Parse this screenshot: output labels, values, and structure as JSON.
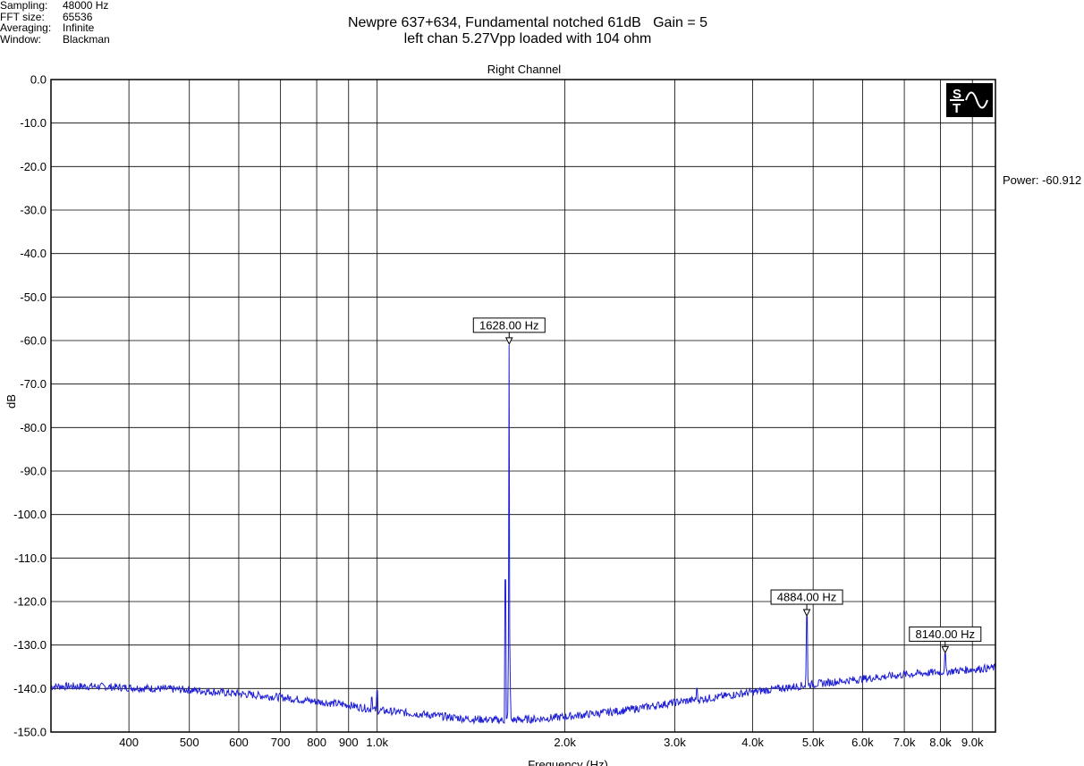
{
  "info": {
    "rows": [
      {
        "label": "Sampling:",
        "value": "48000 Hz"
      },
      {
        "label": "FFT size:",
        "value": "65536"
      },
      {
        "label": "Averaging:",
        "value": "Infinite"
      },
      {
        "label": "Window:",
        "value": "Blackman"
      }
    ]
  },
  "title": {
    "line1": "Newpre 637+634, Fundamental notched 61dB   Gain = 5",
    "line2": "left chan 5.27Vpp loaded with 104 ohm"
  },
  "power_readout": "Power: -60.912",
  "colors": {
    "trace": "#1f1fd6",
    "grid": "#000000",
    "background": "#ffffff"
  },
  "chart_data": {
    "type": "line",
    "title": "Right Channel",
    "xlabel": "Frequency (Hz)",
    "ylabel": "dB",
    "xscale": "log",
    "xlim": [
      300,
      9800
    ],
    "ylim": [
      -150,
      0
    ],
    "grid": true,
    "x_ticks": [
      {
        "value": 400,
        "label": "400"
      },
      {
        "value": 500,
        "label": "500"
      },
      {
        "value": 600,
        "label": "600"
      },
      {
        "value": 700,
        "label": "700"
      },
      {
        "value": 800,
        "label": "800"
      },
      {
        "value": 900,
        "label": "900"
      },
      {
        "value": 1000,
        "label": "1.0k"
      },
      {
        "value": 2000,
        "label": "2.0k"
      },
      {
        "value": 3000,
        "label": "3.0k"
      },
      {
        "value": 4000,
        "label": "4.0k"
      },
      {
        "value": 5000,
        "label": "5.0k"
      },
      {
        "value": 6000,
        "label": "6.0k"
      },
      {
        "value": 7000,
        "label": "7.0k"
      },
      {
        "value": 8000,
        "label": "8.0k"
      },
      {
        "value": 9000,
        "label": "9.0k"
      }
    ],
    "y_ticks": [
      {
        "value": 0,
        "label": "0.0"
      },
      {
        "value": -10,
        "label": "-10.0"
      },
      {
        "value": -20,
        "label": "-20.0"
      },
      {
        "value": -30,
        "label": "-30.0"
      },
      {
        "value": -40,
        "label": "-40.0"
      },
      {
        "value": -50,
        "label": "-50.0"
      },
      {
        "value": -60,
        "label": "-60.0"
      },
      {
        "value": -70,
        "label": "-70.0"
      },
      {
        "value": -80,
        "label": "-80.0"
      },
      {
        "value": -90,
        "label": "-90.0"
      },
      {
        "value": -100,
        "label": "-100.0"
      },
      {
        "value": -110,
        "label": "-110.0"
      },
      {
        "value": -120,
        "label": "-120.0"
      },
      {
        "value": -130,
        "label": "-130.0"
      },
      {
        "value": -140,
        "label": "-140.0"
      },
      {
        "value": -150,
        "label": "-150.0"
      }
    ],
    "noise_floor": [
      {
        "x": 300,
        "y": -139.5
      },
      {
        "x": 350,
        "y": -139.5
      },
      {
        "x": 400,
        "y": -139.8
      },
      {
        "x": 500,
        "y": -140.3
      },
      {
        "x": 600,
        "y": -141.2
      },
      {
        "x": 700,
        "y": -142.0
      },
      {
        "x": 800,
        "y": -143.0
      },
      {
        "x": 900,
        "y": -143.8
      },
      {
        "x": 1000,
        "y": -145.0
      },
      {
        "x": 1200,
        "y": -146.0
      },
      {
        "x": 1400,
        "y": -147.0
      },
      {
        "x": 1600,
        "y": -147.3
      },
      {
        "x": 1800,
        "y": -147.0
      },
      {
        "x": 2000,
        "y": -146.5
      },
      {
        "x": 2500,
        "y": -145.0
      },
      {
        "x": 3000,
        "y": -143.2
      },
      {
        "x": 3500,
        "y": -142.0
      },
      {
        "x": 4000,
        "y": -140.8
      },
      {
        "x": 5000,
        "y": -139.0
      },
      {
        "x": 6000,
        "y": -137.8
      },
      {
        "x": 7000,
        "y": -136.8
      },
      {
        "x": 8000,
        "y": -136.2
      },
      {
        "x": 9000,
        "y": -135.6
      },
      {
        "x": 9800,
        "y": -135.2
      }
    ],
    "spurs": [
      {
        "x": 1000,
        "y": -140.5
      },
      {
        "x": 3256,
        "y": -140.0
      },
      {
        "x": 980,
        "y": -142.0
      },
      {
        "x": 1606,
        "y": -115.0
      }
    ],
    "peaks": [
      {
        "x": 1628,
        "y": -61.0,
        "label": "1628.00 Hz"
      },
      {
        "x": 4884,
        "y": -123.5,
        "label": "4884.00 Hz"
      },
      {
        "x": 8140,
        "y": -132.0,
        "label": "8140.00 Hz"
      }
    ]
  }
}
